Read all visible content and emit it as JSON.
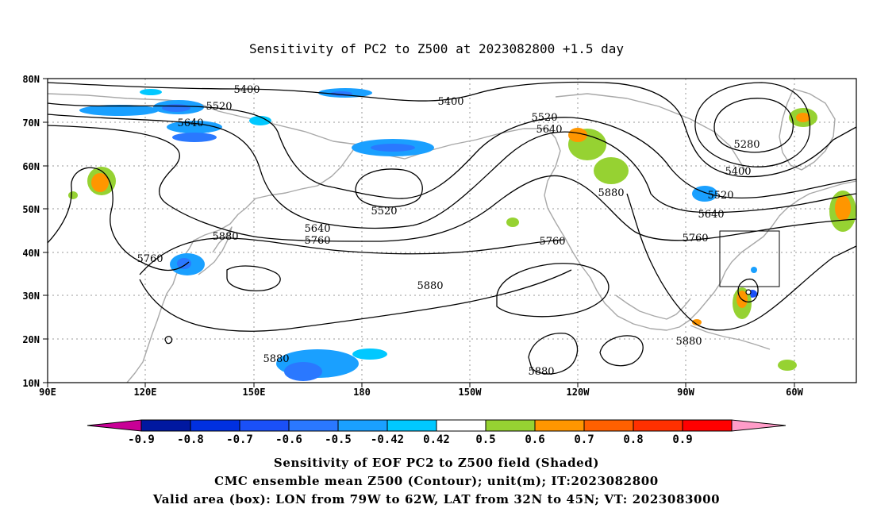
{
  "title": "Sensitivity of PC2 to Z500 at 2023082800 +1.5 day",
  "map": {
    "lon_range": [
      "90E",
      "40W"
    ],
    "lat_range": [
      "10N",
      "80N"
    ],
    "lat_ticks": [
      "80N",
      "70N",
      "60N",
      "50N",
      "40N",
      "30N",
      "20N",
      "10N"
    ],
    "lon_ticks": [
      "90E",
      "120E",
      "150E",
      "180",
      "150W",
      "120W",
      "90W",
      "60W"
    ],
    "gridlines": true,
    "contour_labels": [
      {
        "text": "5400"
      },
      {
        "text": "5520"
      },
      {
        "text": "5640"
      },
      {
        "text": "5400"
      },
      {
        "text": "5520"
      },
      {
        "text": "5640"
      },
      {
        "text": "5280"
      },
      {
        "text": "5400"
      },
      {
        "text": "5520"
      },
      {
        "text": "5640"
      },
      {
        "text": "5880"
      },
      {
        "text": "5520"
      },
      {
        "text": "5640"
      },
      {
        "text": "5760"
      },
      {
        "text": "5880"
      },
      {
        "text": "5760"
      },
      {
        "text": "5760"
      },
      {
        "text": "5880"
      },
      {
        "text": "5760"
      },
      {
        "text": "5880"
      },
      {
        "text": "5880"
      },
      {
        "text": "5880"
      }
    ],
    "valid_box": {
      "lon_west": "79W",
      "lon_east": "62W",
      "lat_south": "32N",
      "lat_north": "45N"
    }
  },
  "colorbar": {
    "labels": [
      "-0.9",
      "-0.8",
      "-0.7",
      "-0.6",
      "-0.5",
      "-0.42",
      "0.42",
      "0.5",
      "0.6",
      "0.7",
      "0.8",
      "0.9"
    ],
    "colors": [
      "#c80096",
      "#0018a0",
      "#0030e0",
      "#1a50f8",
      "#2a78ff",
      "#1aa0ff",
      "#00c8ff",
      "#ffffff",
      "#96d232",
      "#ff9600",
      "#ff6000",
      "#ff3000",
      "#ff0000",
      "#ff9cc8"
    ]
  },
  "captions": [
    "Sensitivity of EOF PC2 to Z500 field (Shaded)",
    "CMC ensemble mean Z500 (Contour); unit(m); IT:2023082800",
    "Valid area (box): LON from 79W to 62W, LAT from 32N to 45N; VT: 2023083000"
  ]
}
